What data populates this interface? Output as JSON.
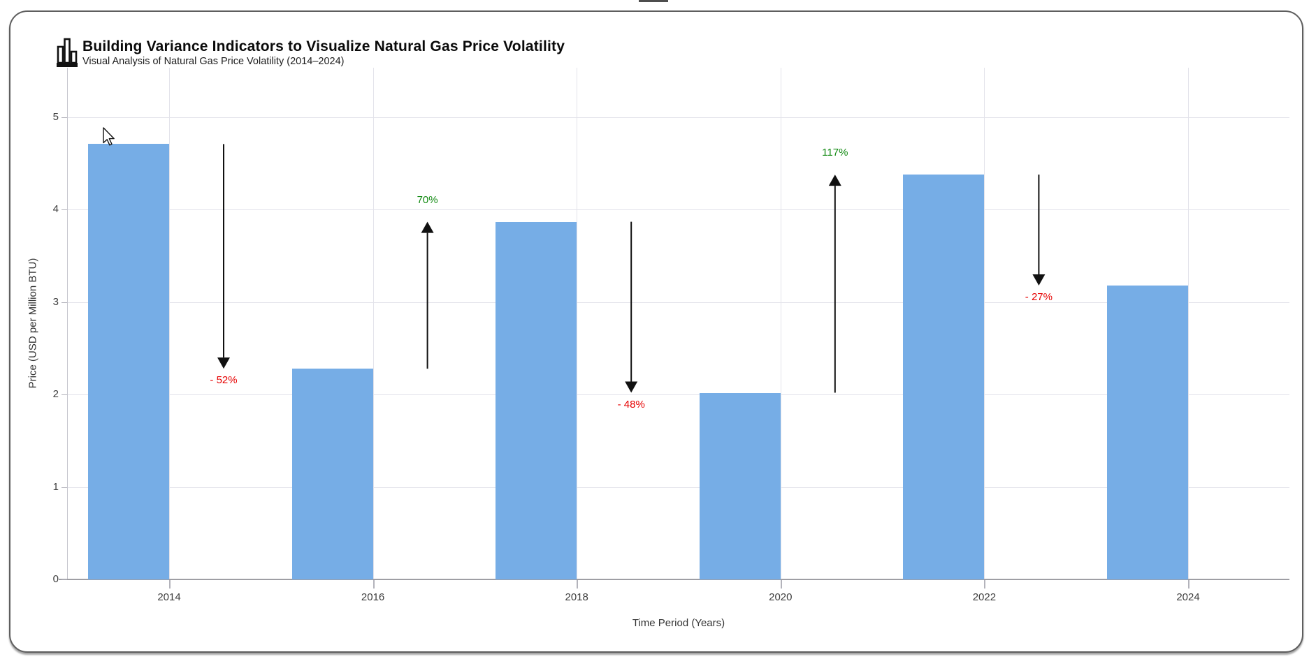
{
  "icons": {
    "header_icon": "bar-chart-icon",
    "cursor": "mouse-arrow-cursor"
  },
  "header": {
    "title": "Building Variance Indicators to Visualize Natural Gas Price Volatility",
    "subtitle": "Visual Analysis of Natural Gas Price Volatility (2014–2024)"
  },
  "chart_data": {
    "type": "bar",
    "title": "Building Variance Indicators to Visualize Natural Gas Price Volatility",
    "subtitle": "Visual Analysis of Natural Gas Price Volatility (2014–2024)",
    "categories": [
      "2014",
      "2016",
      "2018",
      "2020",
      "2022",
      "2024"
    ],
    "values": [
      4.71,
      2.28,
      3.87,
      2.02,
      4.38,
      3.18
    ],
    "xlabel": "Time Period (Years)",
    "ylabel": "Price (USD per Million BTU)",
    "ylim": [
      0,
      5.5
    ],
    "yticks": [
      0,
      1,
      2,
      3,
      4,
      5
    ],
    "grid": true,
    "legend": false,
    "bar_color": "#76ade6",
    "variance_indicators": [
      {
        "from_year": "2014",
        "to_year": "2016",
        "label": "- 52%",
        "percent": -52,
        "direction": "down",
        "label_color": "#e60000"
      },
      {
        "from_year": "2016",
        "to_year": "2018",
        "label": "70%",
        "percent": 70,
        "direction": "up",
        "label_color": "#128a12"
      },
      {
        "from_year": "2018",
        "to_year": "2020",
        "label": "- 48%",
        "percent": -48,
        "direction": "down",
        "label_color": "#e60000"
      },
      {
        "from_year": "2020",
        "to_year": "2022",
        "label": "117%",
        "percent": 117,
        "direction": "up",
        "label_color": "#128a12"
      },
      {
        "from_year": "2022",
        "to_year": "2024",
        "label": "- 27%",
        "percent": -27,
        "direction": "down",
        "label_color": "#e60000"
      }
    ],
    "arrow_color": "#111111"
  },
  "colors": {
    "bar": "#76ade6",
    "negative": "#e60000",
    "positive": "#128a12",
    "gridline": "#e3e3ea",
    "axis_line": "#9e9ea4",
    "card_border": "#5e5e5e"
  }
}
